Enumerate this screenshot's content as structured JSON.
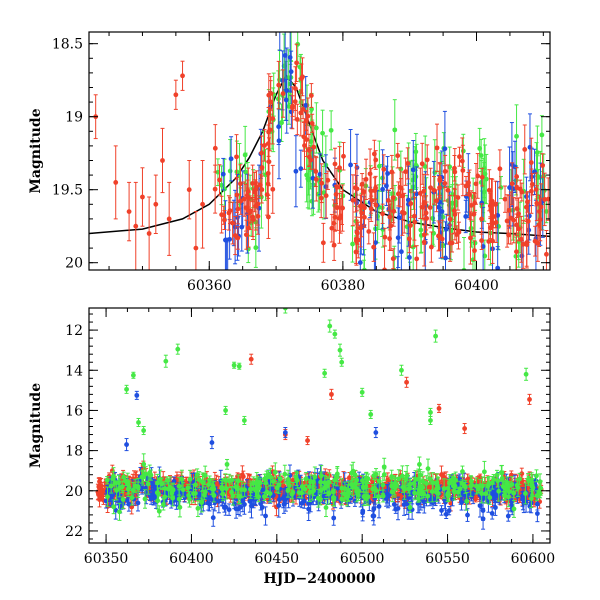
{
  "chart_data": [
    {
      "type": "scatter",
      "panel": "top",
      "title": "",
      "xlabel": "",
      "ylabel": "Magnitude",
      "xlim": [
        60342,
        60411
      ],
      "ylim": [
        20.05,
        18.42
      ],
      "y_inverted": true,
      "x_ticks": [
        60360,
        60380,
        60400
      ],
      "x_tick_labels": [
        "60360",
        "60380",
        "60400"
      ],
      "y_ticks": [
        18.5,
        19,
        19.5,
        20
      ],
      "y_tick_labels": [
        "18.5",
        "19",
        "19.5",
        "20"
      ],
      "grid": false,
      "legend": "none",
      "colors": {
        "green": "#45e845",
        "blue": "#1f4fe0",
        "red": "#f0412a",
        "model": "#000000"
      },
      "model_curve": {
        "description": "black light-curve model",
        "x": [
          60342,
          60350,
          60356,
          60360,
          60364,
          60366,
          60368,
          60370,
          60371.5,
          60373,
          60375,
          60377,
          60380,
          60385,
          60390,
          60395,
          60400,
          60405,
          60411
        ],
        "y": [
          19.8,
          19.77,
          19.7,
          19.6,
          19.42,
          19.28,
          19.1,
          18.85,
          18.72,
          18.8,
          19.05,
          19.3,
          19.5,
          19.65,
          19.72,
          19.76,
          19.79,
          19.8,
          19.82
        ]
      },
      "series": [
        {
          "color": "red",
          "note": "early sparse baseline points with large errors",
          "x": [
            60343,
            60346,
            60348,
            60349,
            60350,
            60351,
            60352,
            60353,
            60354,
            60355,
            60356,
            60357,
            60358,
            60359
          ],
          "y": [
            19.0,
            19.45,
            19.65,
            19.75,
            19.55,
            19.8,
            19.6,
            19.3,
            19.7,
            18.85,
            18.72,
            19.5,
            19.9,
            19.6
          ],
          "err": [
            0.15,
            0.25,
            0.2,
            0.3,
            0.2,
            0.25,
            0.2,
            0.22,
            0.25,
            0.1,
            0.1,
            0.2,
            0.25,
            0.3
          ]
        },
        {
          "color": "green",
          "note": "dense monitoring from ~60361",
          "x_start": 60361,
          "x_end": 60411,
          "points": 160,
          "mag_baseline": 19.6,
          "mag_scatter": 0.35,
          "err_typical": 0.15
        },
        {
          "color": "blue",
          "note": "dense monitoring from ~60362",
          "x_start": 60362,
          "x_end": 60411,
          "points": 90,
          "mag_baseline": 19.65,
          "mag_scatter": 0.35,
          "err_typical": 0.2
        },
        {
          "color": "red",
          "note": "dense monitoring from ~60360",
          "x_start": 60360,
          "x_end": 60411,
          "points": 260,
          "mag_baseline": 19.6,
          "mag_scatter": 0.3,
          "err_typical": 0.12
        },
        {
          "color": "red",
          "note": "outburst peak near 60371-60373",
          "peak_x": 60372,
          "peak_mag": 18.6
        }
      ]
    },
    {
      "type": "scatter",
      "panel": "bottom",
      "title": "",
      "xlabel": "HJD−2400000",
      "ylabel": "Magnitude",
      "xlim": [
        60340,
        60610
      ],
      "ylim": [
        22.6,
        10.9
      ],
      "y_inverted": true,
      "x_ticks": [
        60350,
        60400,
        60450,
        60500,
        60550,
        60600
      ],
      "x_tick_labels": [
        "60350",
        "60400",
        "60450",
        "60500",
        "60550",
        "60600"
      ],
      "y_ticks": [
        12,
        14,
        16,
        18,
        20,
        22
      ],
      "y_tick_labels": [
        "12",
        "14",
        "16",
        "18",
        "20",
        "22"
      ],
      "grid": false,
      "legend": "none",
      "colors": {
        "green": "#45e845",
        "blue": "#1f4fe0",
        "red": "#f0412a"
      },
      "series": [
        {
          "color": "red",
          "note": "dense baseline band",
          "x_start": 60345,
          "x_end": 60605,
          "points": 900,
          "mag_baseline": 19.9,
          "mag_scatter": 0.45,
          "err_typical": 0.3
        },
        {
          "color": "blue",
          "note": "dense baseline band",
          "x_start": 60350,
          "x_end": 60605,
          "points": 350,
          "mag_baseline": 20.2,
          "mag_scatter": 0.7,
          "err_typical": 0.4
        },
        {
          "color": "green",
          "note": "dense baseline band",
          "x_start": 60350,
          "x_end": 60605,
          "points": 320,
          "mag_baseline": 19.8,
          "mag_scatter": 0.7,
          "err_typical": 0.35
        },
        {
          "color": "green",
          "note": "bright outliers",
          "x": [
            60362,
            60366,
            60385,
            60392,
            60420,
            60425,
            60428,
            60455,
            60478,
            60481,
            60484,
            60487,
            60488,
            60500,
            60523,
            60540,
            60543,
            60596,
            60505,
            60431,
            60372,
            60369,
            60540
          ],
          "y": [
            14.95,
            14.25,
            13.55,
            12.95,
            16.0,
            13.75,
            13.8,
            10.9,
            14.15,
            11.8,
            12.2,
            13.0,
            13.6,
            15.1,
            14.0,
            16.1,
            12.3,
            14.2,
            16.2,
            16.5,
            17.0,
            16.6,
            16.5
          ],
          "err": [
            0.2,
            0.15,
            0.3,
            0.25,
            0.2,
            0.15,
            0.15,
            0.25,
            0.2,
            0.3,
            0.2,
            0.3,
            0.2,
            0.2,
            0.25,
            0.2,
            0.3,
            0.3,
            0.2,
            0.2,
            0.2,
            0.2,
            0.2
          ]
        },
        {
          "color": "red",
          "note": "bright outliers",
          "x": [
            60435,
            60482,
            60526,
            60545,
            60598,
            60455,
            60560,
            60468
          ],
          "y": [
            13.45,
            15.2,
            14.6,
            15.9,
            15.45,
            17.2,
            16.9,
            17.5
          ],
          "err": [
            0.25,
            0.25,
            0.25,
            0.2,
            0.25,
            0.25,
            0.25,
            0.2
          ]
        },
        {
          "color": "blue",
          "note": "bright outliers",
          "x": [
            60368,
            60362,
            60412,
            60455,
            60508
          ],
          "y": [
            15.25,
            17.7,
            17.6,
            17.1,
            17.1
          ],
          "err": [
            0.2,
            0.3,
            0.3,
            0.25,
            0.25
          ]
        }
      ]
    }
  ]
}
